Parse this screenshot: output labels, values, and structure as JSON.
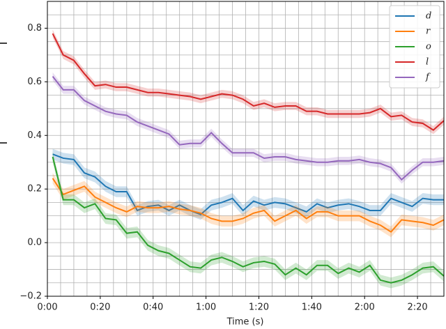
{
  "chart_data": {
    "type": "line",
    "xlabel": "Time (s)",
    "x": [
      2,
      6,
      10,
      14,
      18,
      22,
      26,
      30,
      34,
      38,
      42,
      46,
      50,
      54,
      58,
      62,
      66,
      70,
      74,
      78,
      82,
      86,
      90,
      94,
      98,
      102,
      106,
      110,
      114,
      118,
      122,
      126,
      130,
      134,
      138,
      142,
      146,
      150
    ],
    "series": [
      {
        "name": "d",
        "color": "#1f77b4",
        "band": 0.02,
        "values": [
          0.33,
          0.315,
          0.31,
          0.26,
          0.245,
          0.21,
          0.19,
          0.19,
          0.12,
          0.135,
          0.14,
          0.12,
          0.14,
          0.12,
          0.105,
          0.14,
          0.15,
          0.165,
          0.12,
          0.155,
          0.14,
          0.15,
          0.145,
          0.13,
          0.115,
          0.145,
          0.13,
          0.14,
          0.145,
          0.135,
          0.12,
          0.12,
          0.165,
          0.15,
          0.135,
          0.165,
          0.16,
          0.16
        ]
      },
      {
        "name": "r",
        "color": "#ff7f0e",
        "band": 0.02,
        "values": [
          0.24,
          0.18,
          0.195,
          0.21,
          0.17,
          0.15,
          0.13,
          0.115,
          0.135,
          0.13,
          0.13,
          0.135,
          0.125,
          0.12,
          0.11,
          0.09,
          0.08,
          0.08,
          0.09,
          0.11,
          0.12,
          0.08,
          0.1,
          0.12,
          0.09,
          0.115,
          0.115,
          0.1,
          0.1,
          0.1,
          0.08,
          0.065,
          0.04,
          0.085,
          0.08,
          0.075,
          0.065,
          0.085
        ]
      },
      {
        "name": "o",
        "color": "#2ca02c",
        "band": 0.02,
        "values": [
          0.32,
          0.16,
          0.16,
          0.13,
          0.145,
          0.09,
          0.085,
          0.035,
          0.04,
          -0.01,
          -0.03,
          -0.04,
          -0.065,
          -0.09,
          -0.095,
          -0.065,
          -0.055,
          -0.07,
          -0.09,
          -0.075,
          -0.07,
          -0.08,
          -0.12,
          -0.095,
          -0.12,
          -0.085,
          -0.085,
          -0.115,
          -0.095,
          -0.11,
          -0.085,
          -0.14,
          -0.15,
          -0.14,
          -0.12,
          -0.095,
          -0.09,
          -0.125
        ]
      },
      {
        "name": "l",
        "color": "#d62728",
        "band": 0.015,
        "values": [
          0.78,
          0.7,
          0.68,
          0.63,
          0.585,
          0.59,
          0.58,
          0.58,
          0.57,
          0.56,
          0.56,
          0.555,
          0.55,
          0.545,
          0.535,
          0.545,
          0.555,
          0.55,
          0.535,
          0.51,
          0.52,
          0.505,
          0.51,
          0.51,
          0.49,
          0.49,
          0.48,
          0.48,
          0.48,
          0.48,
          0.485,
          0.5,
          0.47,
          0.475,
          0.45,
          0.445,
          0.42,
          0.455
        ]
      },
      {
        "name": "f",
        "color": "#9467bd",
        "band": 0.015,
        "values": [
          0.62,
          0.57,
          0.57,
          0.53,
          0.51,
          0.49,
          0.48,
          0.475,
          0.45,
          0.435,
          0.42,
          0.405,
          0.365,
          0.37,
          0.37,
          0.41,
          0.37,
          0.335,
          0.335,
          0.335,
          0.315,
          0.32,
          0.32,
          0.31,
          0.305,
          0.3,
          0.3,
          0.305,
          0.305,
          0.31,
          0.3,
          0.295,
          0.28,
          0.235,
          0.27,
          0.3,
          0.3,
          0.305
        ]
      }
    ],
    "xlim": [
      0,
      150
    ],
    "ylim": [
      -0.2,
      0.9
    ],
    "xticks": [
      {
        "value": 0,
        "label": "0:00"
      },
      {
        "value": 20,
        "label": "0:20"
      },
      {
        "value": 40,
        "label": "0:40"
      },
      {
        "value": 60,
        "label": "1:00"
      },
      {
        "value": 80,
        "label": "1:20"
      },
      {
        "value": 100,
        "label": "1:40"
      },
      {
        "value": 120,
        "label": "2:00"
      },
      {
        "value": 140,
        "label": "2:20"
      }
    ],
    "yticks": [
      {
        "value": -0.2,
        "label": "−0.2"
      },
      {
        "value": 0,
        "label": "0.0"
      },
      0.2,
      0.4,
      0.6,
      0.8
    ],
    "x_grid_lines": [
      5,
      10,
      15,
      20,
      25,
      30,
      35,
      40,
      45,
      50,
      55,
      60,
      65,
      70,
      75,
      80,
      85,
      90,
      95,
      100,
      105,
      110,
      115,
      120,
      125,
      130,
      135,
      140,
      145
    ],
    "y_grid_lines": [
      -0.15,
      -0.1,
      -0.05,
      0,
      0.05,
      0.1,
      0.15,
      0.2,
      0.25,
      0.3,
      0.35,
      0.4,
      0.45,
      0.5,
      0.55,
      0.6,
      0.65,
      0.7,
      0.75,
      0.8,
      0.85
    ],
    "legend": "upper right"
  }
}
